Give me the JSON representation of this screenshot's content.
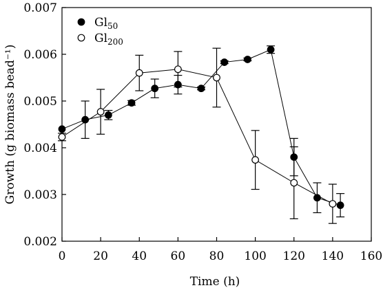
{
  "chart_data": {
    "type": "scatter",
    "xlabel": "Time (h)",
    "ylabel": "Growth (g biomass bead⁻¹)",
    "xlim": [
      0,
      160
    ],
    "ylim": [
      0.002,
      0.007
    ],
    "xticks": [
      0,
      20,
      40,
      60,
      80,
      100,
      120,
      140,
      160
    ],
    "yticks": [
      0.002,
      0.003,
      0.004,
      0.005,
      0.006,
      0.007
    ],
    "xtick_labels": [
      "0",
      "20",
      "40",
      "60",
      "80",
      "100",
      "120",
      "140",
      "160"
    ],
    "ytick_labels": [
      "0.002",
      "0.003",
      "0.004",
      "0.005",
      "0.006",
      "0.007"
    ],
    "legend_position": "top-left",
    "series": [
      {
        "name_main": "Gl",
        "name_sub": "50",
        "marker": "filled-circle",
        "x": [
          0,
          12,
          24,
          36,
          48,
          60,
          72,
          84,
          96,
          108,
          120,
          132,
          144
        ],
        "y": [
          0.0044,
          0.0046,
          0.0047,
          0.00496,
          0.00527,
          0.00535,
          0.00527,
          0.00583,
          0.00589,
          0.0061,
          0.0038,
          0.00293,
          0.00277
        ],
        "err": [
          0,
          0.0004,
          0.0001,
          5e-05,
          0.0002,
          0.0002,
          3e-05,
          3e-05,
          3e-05,
          8e-05,
          0.0004,
          0.00032,
          0.00025
        ]
      },
      {
        "name_main": "Gl",
        "name_sub": "200",
        "marker": "open-circle",
        "x": [
          0,
          20,
          40,
          60,
          80,
          100,
          120,
          140
        ],
        "y": [
          0.00423,
          0.00477,
          0.0056,
          0.00568,
          0.0055,
          0.00374,
          0.00325,
          0.0028
        ],
        "err": [
          8e-05,
          0.00048,
          0.00038,
          0.00038,
          0.00063,
          0.00063,
          0.00077,
          0.00042
        ]
      }
    ]
  }
}
